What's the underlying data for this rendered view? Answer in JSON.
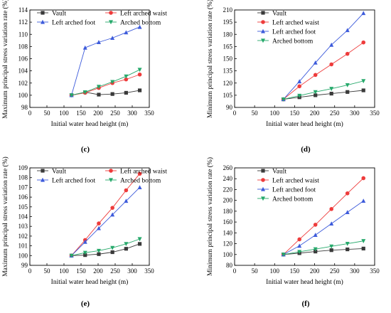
{
  "figure": {
    "panel_labels": [
      "(c)",
      "(d)",
      "(e)",
      "(f)"
    ]
  },
  "chart_data": [
    {
      "type": "line",
      "panel": "(c)",
      "xlabel": "Initial water head height (m)",
      "ylabel": "Maximum principal stress variation rate (%)",
      "xlim": [
        0,
        350
      ],
      "ylim": [
        98,
        114
      ],
      "x_ticks": [
        0,
        50,
        100,
        150,
        200,
        250,
        300,
        350
      ],
      "y_ticks": [
        98,
        100,
        102,
        104,
        106,
        108,
        110,
        112,
        114
      ],
      "legend_position": "top",
      "x": [
        122,
        162,
        202,
        242,
        282,
        322
      ],
      "series": [
        {
          "name": "Vault",
          "color": "#3a3a3a",
          "marker": "square",
          "values": [
            100,
            100.5,
            100.1,
            100.2,
            100.4,
            100.8
          ]
        },
        {
          "name": "Left arched waist",
          "color": "#ee3b3b",
          "marker": "circle",
          "values": [
            100,
            100.4,
            101.2,
            102.0,
            102.6,
            103.4
          ]
        },
        {
          "name": "Left arched foot",
          "color": "#3d5bdb",
          "marker": "triangle-up",
          "values": [
            100,
            107.8,
            108.7,
            109.4,
            110.3,
            111.2
          ]
        },
        {
          "name": "Arched bottom",
          "color": "#26a96b",
          "marker": "triangle-down",
          "values": [
            100,
            100.5,
            101.4,
            102.2,
            103.1,
            104.2
          ]
        }
      ]
    },
    {
      "type": "line",
      "panel": "(d)",
      "xlabel": "Initial water head height (m)",
      "ylabel": "Minimum principal stress variation rate (%)",
      "xlim": [
        0,
        350
      ],
      "ylim": [
        90,
        210
      ],
      "x_ticks": [
        0,
        50,
        100,
        150,
        200,
        250,
        300,
        350
      ],
      "y_ticks": [
        90,
        105,
        120,
        135,
        150,
        165,
        180,
        195,
        210
      ],
      "legend_position": "top",
      "x": [
        122,
        162,
        202,
        242,
        282,
        322
      ],
      "series": [
        {
          "name": "Vault",
          "color": "#3a3a3a",
          "marker": "square",
          "values": [
            100,
            102.5,
            105,
            107,
            109,
            111
          ]
        },
        {
          "name": "Left arched waist",
          "color": "#ee3b3b",
          "marker": "circle",
          "values": [
            100,
            116,
            130,
            143,
            156,
            170
          ]
        },
        {
          "name": "Left arched foot",
          "color": "#3d5bdb",
          "marker": "triangle-up",
          "values": [
            100,
            122,
            145,
            167,
            185,
            206
          ]
        },
        {
          "name": "Arched bottom",
          "color": "#26a96b",
          "marker": "triangle-down",
          "values": [
            100,
            104.5,
            109,
            113,
            117.5,
            122.5
          ]
        }
      ]
    },
    {
      "type": "line",
      "panel": "(e)",
      "xlabel": "Initial water head height (m)",
      "ylabel": "Maximum principal stress variation rate (%)",
      "xlim": [
        0,
        350
      ],
      "ylim": [
        99,
        109
      ],
      "x_ticks": [
        0,
        50,
        100,
        150,
        200,
        250,
        300,
        350
      ],
      "y_ticks": [
        99,
        100,
        101,
        102,
        103,
        104,
        105,
        106,
        107,
        108,
        109
      ],
      "legend_position": "top",
      "x": [
        122,
        162,
        202,
        242,
        282,
        322
      ],
      "series": [
        {
          "name": "Vault",
          "color": "#3a3a3a",
          "marker": "square",
          "values": [
            100,
            100.05,
            100.15,
            100.35,
            100.7,
            101.2
          ]
        },
        {
          "name": "Left arched waist",
          "color": "#ee3b3b",
          "marker": "circle",
          "values": [
            100,
            101.6,
            103.3,
            104.9,
            106.7,
            108.4
          ]
        },
        {
          "name": "Left arched foot",
          "color": "#3d5bdb",
          "marker": "triangle-up",
          "values": [
            100,
            101.4,
            102.8,
            104.2,
            105.6,
            107.0
          ]
        },
        {
          "name": "Arched bottom",
          "color": "#26a96b",
          "marker": "triangle-down",
          "values": [
            100,
            100.3,
            100.5,
            100.8,
            101.2,
            101.7
          ]
        }
      ]
    },
    {
      "type": "line",
      "panel": "(f)",
      "xlabel": "Initial water head height (m)",
      "ylabel": "Minimum principal stress variation rate (%)",
      "xlim": [
        0,
        350
      ],
      "ylim": [
        80,
        260
      ],
      "x_ticks": [
        0,
        50,
        100,
        150,
        200,
        250,
        300,
        350
      ],
      "y_ticks": [
        80,
        100,
        120,
        140,
        160,
        180,
        200,
        220,
        240,
        260
      ],
      "legend_position": "top",
      "x": [
        122,
        162,
        202,
        242,
        282,
        322
      ],
      "series": [
        {
          "name": "Vault",
          "color": "#3a3a3a",
          "marker": "square",
          "values": [
            100,
            102.5,
            105.5,
            108,
            109.5,
            111
          ]
        },
        {
          "name": "Left arched waist",
          "color": "#ee3b3b",
          "marker": "circle",
          "values": [
            100,
            128,
            155,
            184,
            213,
            241
          ]
        },
        {
          "name": "Left arched foot",
          "color": "#3d5bdb",
          "marker": "triangle-up",
          "values": [
            100,
            116,
            136,
            157,
            178,
            199
          ]
        },
        {
          "name": "Arched bottom",
          "color": "#26a96b",
          "marker": "triangle-down",
          "values": [
            100,
            105,
            110,
            115,
            120,
            125
          ]
        }
      ]
    }
  ]
}
